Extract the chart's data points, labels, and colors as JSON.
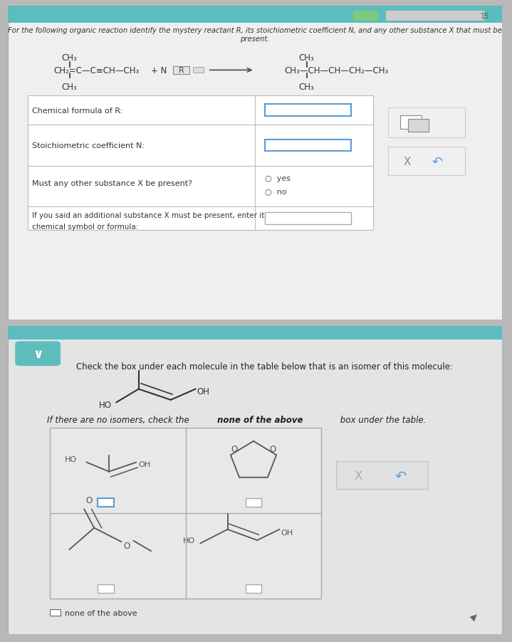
{
  "overall_bg": "#b8b8b8",
  "panel1_bg": "#efefef",
  "panel2_bg": "#e4e4e4",
  "teal_color": "#5cbcbe",
  "white": "#ffffff",
  "border_color": "#bbbbbb",
  "text_dark": "#333333",
  "blue_border": "#5b9bd5",
  "title_text": "For the following organic reaction identify the mystery reactant R, its stoichiometric coefficient N, and any other substance X that must be present.",
  "table_rows": [
    "Chemical formula of R:",
    "Stoichiometric coefficient N:",
    "Must any other substance X be present?",
    "If you said an additional substance X must be present, enter its\nchemical symbol or formula:"
  ],
  "check_label": "Check the box under each molecule in the table below that is an isomer of this molecule:",
  "isomers_label_1": "If there are no isomers, check the ",
  "isomers_label_bold": "none of the above",
  "isomers_label_2": " box under the table.",
  "none_above": "none of the above"
}
